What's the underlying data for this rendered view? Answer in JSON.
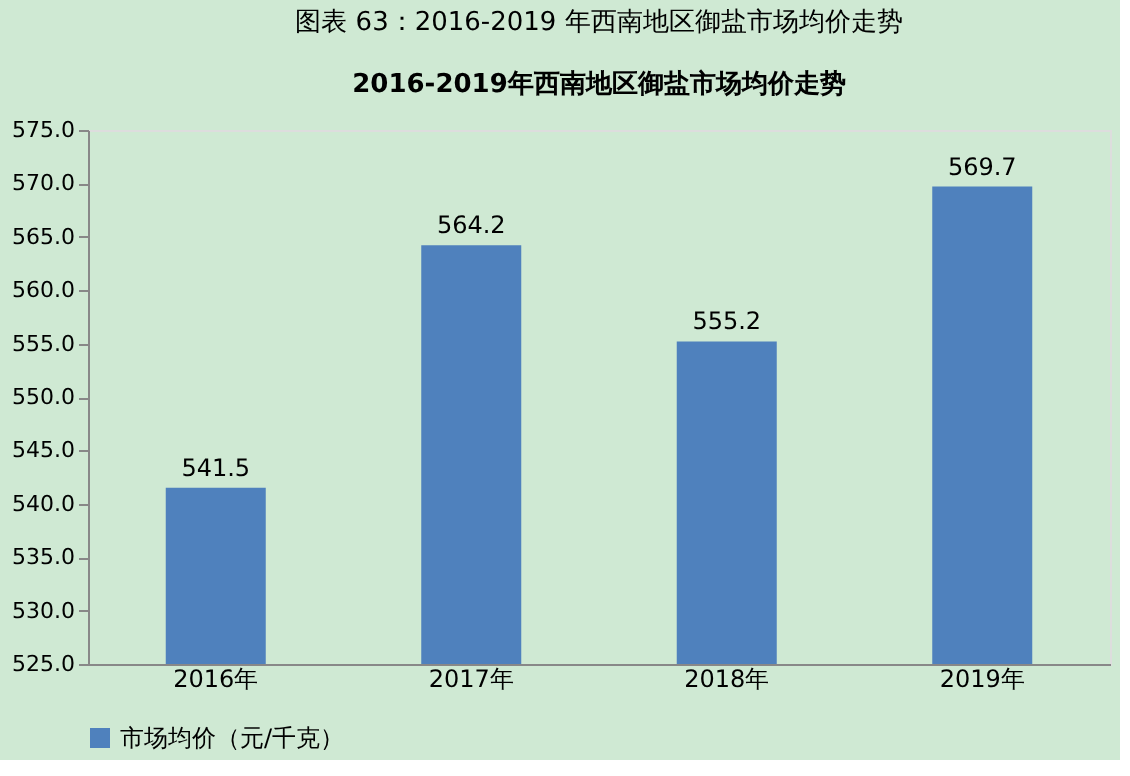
{
  "chart_data": {
    "type": "bar",
    "title": "图表 63：2016-2019 年西南地区御盐市场均价走势",
    "subtitle": "2016-2019年西南地区御盐市场均价走势",
    "categories": [
      "2016年",
      "2017年",
      "2018年",
      "2019年"
    ],
    "series": [
      {
        "name": "市场均价（元/千克）",
        "color": "#4f81bd",
        "values": [
          541.5,
          564.2,
          555.2,
          569.7
        ]
      }
    ],
    "ylim": [
      525,
      575
    ],
    "yticks": [
      {
        "value": 525,
        "label": "525.0"
      },
      {
        "value": 530,
        "label": "530.0"
      },
      {
        "value": 535,
        "label": "535.0"
      },
      {
        "value": 540,
        "label": "540.0"
      },
      {
        "value": 545,
        "label": "545.0"
      },
      {
        "value": 550,
        "label": "550.0"
      },
      {
        "value": 555,
        "label": "555.0"
      },
      {
        "value": 560,
        "label": "560.0"
      },
      {
        "value": 565,
        "label": "565.0"
      },
      {
        "value": 570,
        "label": "570.0"
      },
      {
        "value": 575,
        "label": "575.0"
      }
    ],
    "data_labels": true,
    "grid": false,
    "legend": "bottom"
  }
}
